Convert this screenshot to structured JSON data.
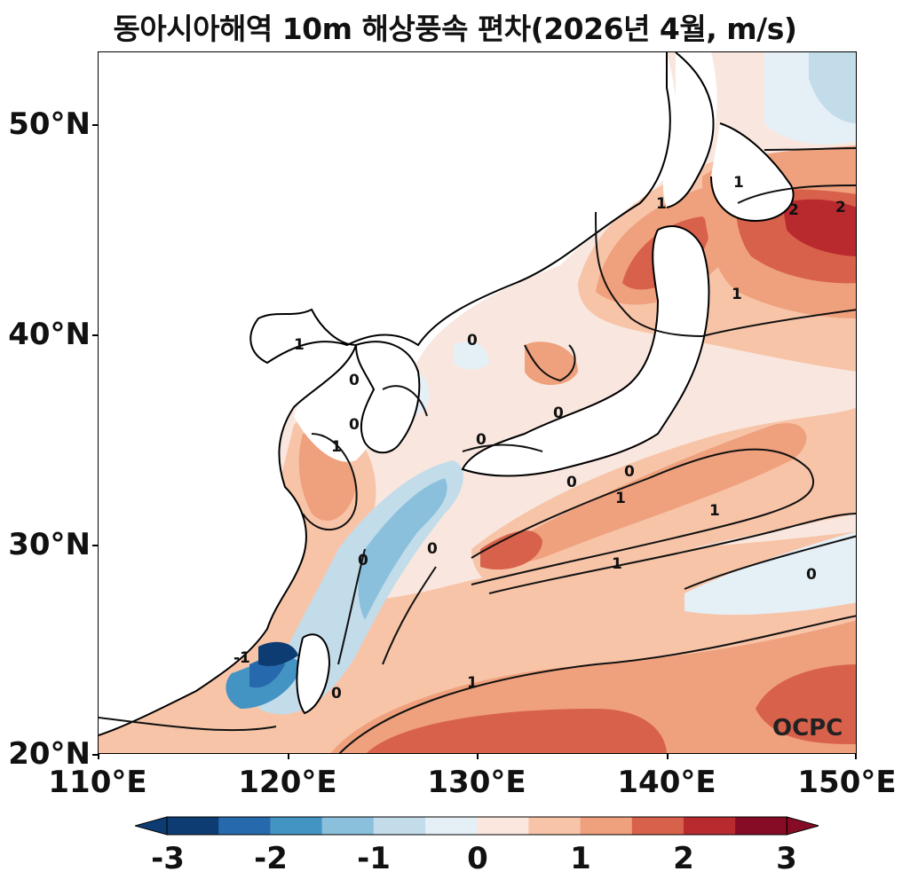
{
  "title": "동아시아해역 10m 해상풍속 편차(2026년 4월, m/s)",
  "y_axis": {
    "ticks": [
      "50°N",
      "40°N",
      "30°N",
      "20°N"
    ]
  },
  "x_axis": {
    "ticks": [
      "110°E",
      "120°E",
      "130°E",
      "140°E",
      "150°E"
    ]
  },
  "watermark": "OCPC",
  "colorbar": {
    "tick_labels": [
      "-3",
      "-2",
      "-1",
      "0",
      "1",
      "2",
      "3"
    ],
    "colors": [
      "#0d3c73",
      "#2769ad",
      "#4393c3",
      "#8bc0dd",
      "#c3dcea",
      "#e5eff6",
      "#fbe7de",
      "#f7c4a8",
      "#efa07c",
      "#d8614b",
      "#b92a2f",
      "#860b24"
    ]
  },
  "contour_labels": [
    "-1",
    "0",
    "0",
    "0",
    "0",
    "0",
    "0",
    "0",
    "0",
    "0",
    "0",
    "0",
    "1",
    "1",
    "1",
    "1",
    "1",
    "1",
    "1",
    "1",
    "1",
    "2",
    "2"
  ],
  "land_icon": "coastline-map"
}
